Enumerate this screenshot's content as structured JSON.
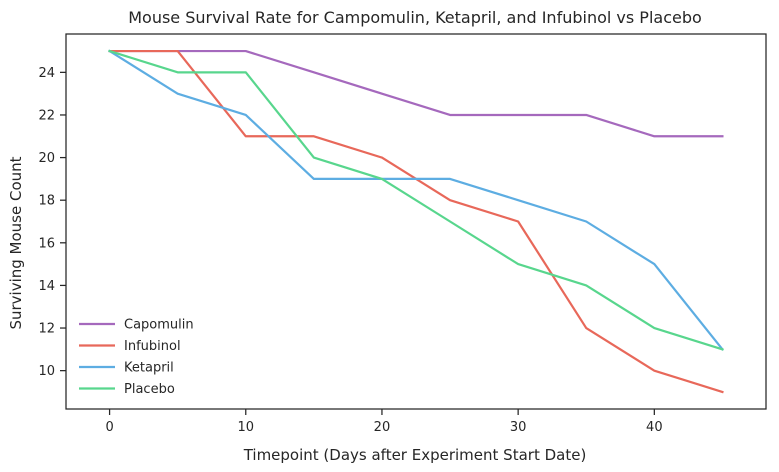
{
  "chart_data": {
    "type": "line",
    "title": "Mouse Survival Rate for Campomulin, Ketapril, and Infubinol vs Placebo",
    "xlabel": "Timepoint (Days after Experiment Start Date)",
    "ylabel": "Surviving Mouse Count",
    "x": [
      0,
      5,
      10,
      15,
      20,
      25,
      30,
      35,
      40,
      45
    ],
    "xlim": [
      -3.2,
      48.2
    ],
    "ylim": [
      8.2,
      25.8
    ],
    "xticks": [
      "0",
      "10",
      "20",
      "30",
      "40"
    ],
    "yticks": [
      "10",
      "12",
      "14",
      "16",
      "18",
      "20",
      "22",
      "24"
    ],
    "grid": false,
    "legend_position": "lower-left",
    "series": [
      {
        "name": "Capomulin",
        "color": "#a569bd",
        "values": [
          25,
          25,
          25,
          24,
          23,
          22,
          22,
          22,
          21,
          21
        ]
      },
      {
        "name": "Infubinol",
        "color": "#e8685a",
        "values": [
          25,
          25,
          21,
          21,
          20,
          18,
          17,
          12,
          10,
          9
        ]
      },
      {
        "name": "Ketapril",
        "color": "#5dade2",
        "values": [
          25,
          23,
          22,
          19,
          19,
          19,
          18,
          17,
          15,
          11
        ]
      },
      {
        "name": "Placebo",
        "color": "#58d68d",
        "values": [
          25,
          24,
          24,
          20,
          19,
          17,
          15,
          14,
          12,
          11
        ]
      }
    ]
  }
}
